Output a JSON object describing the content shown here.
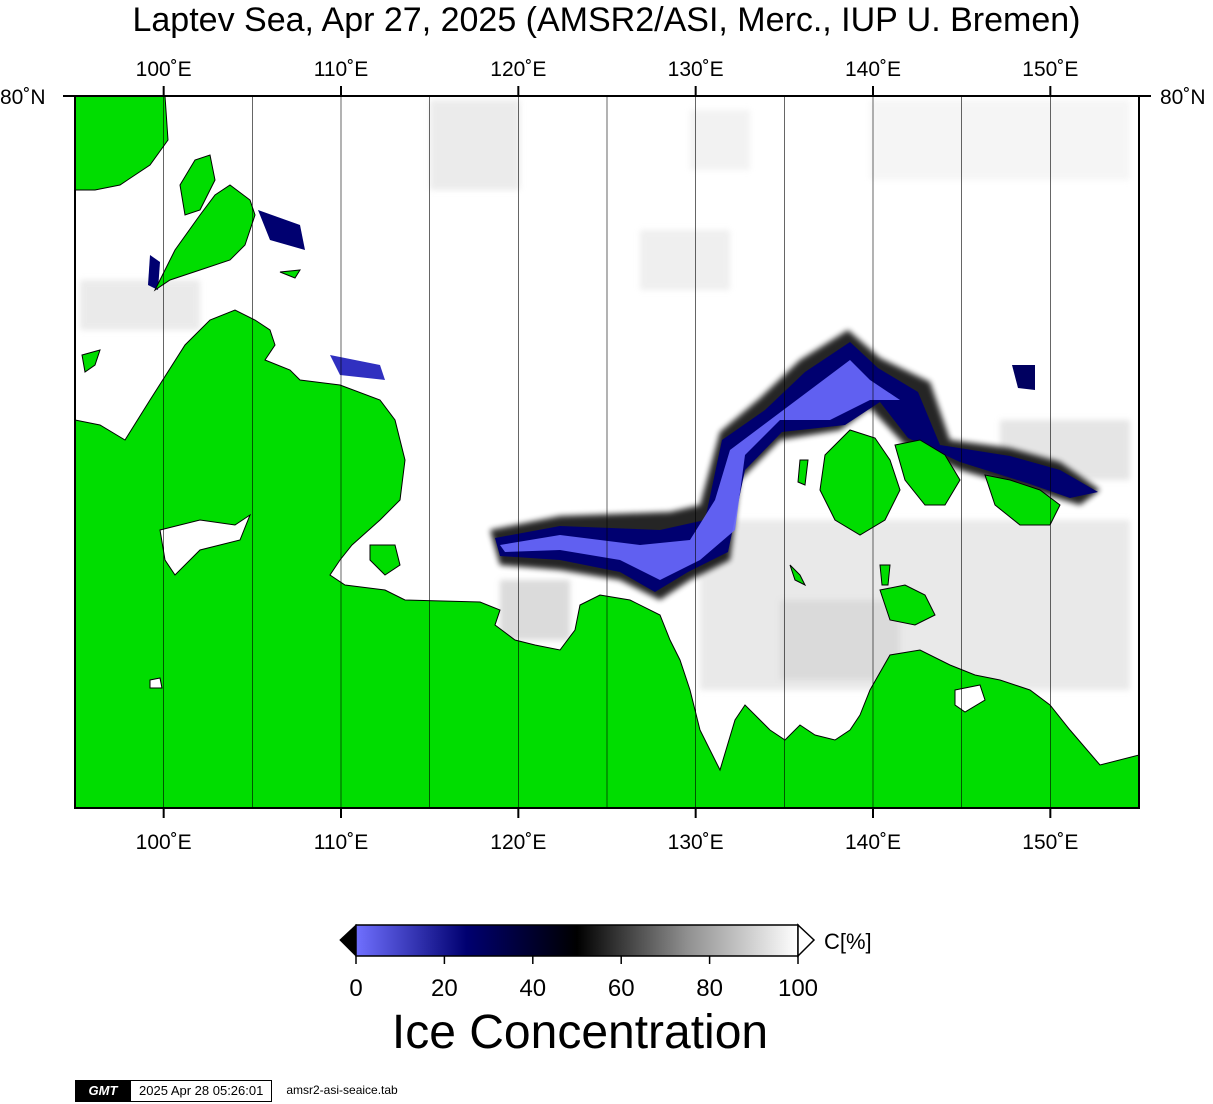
{
  "title": "Laptev Sea, Apr 27, 2025 (AMSR2/ASI, Merc., IUP U. Bremen)",
  "map": {
    "lon_range": [
      95,
      155
    ],
    "lat_top_label": "80˚N",
    "lon_labels": [
      {
        "lon": 100,
        "label": "100˚E"
      },
      {
        "lon": 110,
        "label": "110˚E"
      },
      {
        "lon": 120,
        "label": "120˚E"
      },
      {
        "lon": 130,
        "label": "130˚E"
      },
      {
        "lon": 140,
        "label": "140˚E"
      },
      {
        "lon": 150,
        "label": "150˚E"
      }
    ],
    "gridline_lons": [
      100,
      105,
      110,
      115,
      120,
      125,
      130,
      135,
      140,
      145,
      150
    ],
    "colors": {
      "land": "#00dd00",
      "ice": "#ffffff",
      "polynya_low": "#7070ff",
      "polynya_mid": "#000066"
    }
  },
  "colorbar": {
    "unit_label": "C[%]",
    "tick_labels": [
      "0",
      "20",
      "40",
      "60",
      "80",
      "100"
    ],
    "stops": [
      {
        "value": 0,
        "color": "#7070ff"
      },
      {
        "value": 25,
        "color": "#000070"
      },
      {
        "value": 50,
        "color": "#000000"
      },
      {
        "value": 75,
        "color": "#909090"
      },
      {
        "value": 100,
        "color": "#ffffff"
      }
    ]
  },
  "bottom_label": "Ice Concentration",
  "footer": {
    "logo_text": "GMT",
    "timestamp": "2025 Apr 28 05:26:01",
    "filename": "amsr2-asi-seaice.tab"
  }
}
